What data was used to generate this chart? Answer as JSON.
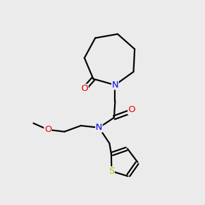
{
  "background_color": "#ebebeb",
  "atom_colors": {
    "C": "#000000",
    "N": "#0000ee",
    "O": "#ee0000",
    "S": "#bbbb00"
  },
  "figsize": [
    3.0,
    3.0
  ],
  "dpi": 100,
  "lw": 1.6,
  "fontsize": 9.5
}
